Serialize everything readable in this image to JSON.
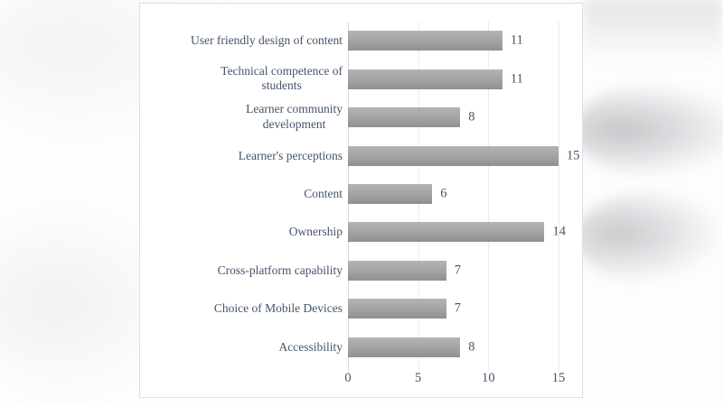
{
  "page": {
    "background_color": "#fdfdfe"
  },
  "panel": {
    "background_color": "#ffffff",
    "border_color": "#dbdfe4"
  },
  "chart_data": {
    "type": "bar",
    "orientation": "horizontal",
    "title": "",
    "xlabel": "",
    "ylabel": "",
    "categories": [
      "User friendly design of content",
      "Technical competence of\nstudents",
      "Learner community\ndevelopment",
      "Learner's perceptions",
      "Content",
      "Ownership",
      "Cross-platform capability",
      "Choice of Mobile Devices",
      "Accessibility"
    ],
    "values": [
      11,
      11,
      8,
      15,
      6,
      14,
      7,
      7,
      8
    ],
    "data_labels_shown": true,
    "x_ticks": [
      0,
      5,
      10,
      15
    ],
    "x_tick_labels": [
      "0",
      "5",
      "10",
      "15"
    ],
    "xlim": [
      0,
      15
    ],
    "grid": true,
    "legend": false,
    "bar_gradient_top": "#b4b4b4",
    "bar_gradient_mid": "#a2a2a2",
    "bar_gradient_bottom": "#8f8f8f",
    "gridline_color": "#e9ebee",
    "axis_line_color": "#d4d8dc",
    "text_color": "#44546A"
  }
}
